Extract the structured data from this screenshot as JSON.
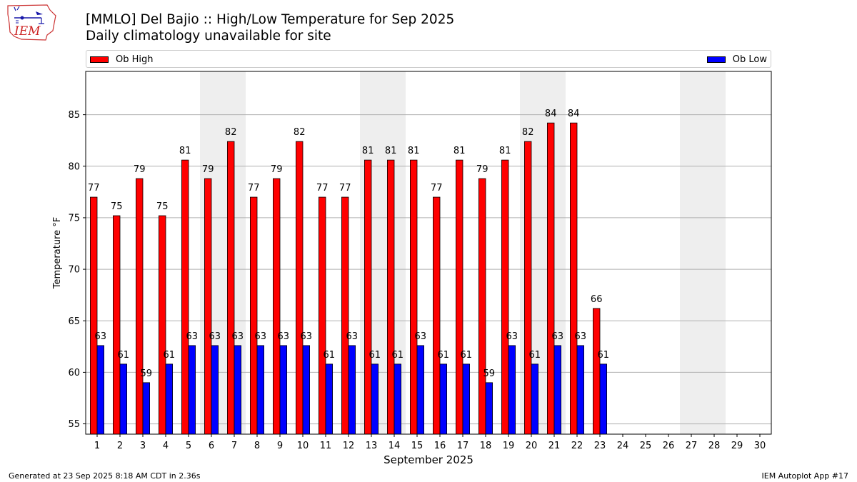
{
  "header": {
    "title": "[MMLO] Del Bajio :: High/Low Temperature for Sep 2025",
    "subtitle": "Daily climatology unavailable for site"
  },
  "logo": {
    "text": "IEM"
  },
  "footer": {
    "left": "Generated at 23 Sep 2025 8:18 AM CDT in 2.36s",
    "right": "IEM Autoplot App #17"
  },
  "colors": {
    "high": "#ff0000",
    "low": "#0000ff",
    "weekend_band": "#eeeeee",
    "grid": "#b0b0b0"
  },
  "chart_data": {
    "type": "bar",
    "title": "[MMLO] Del Bajio :: High/Low Temperature for Sep 2025",
    "subtitle": "Daily climatology unavailable for site",
    "xlabel": "September 2025",
    "ylabel": "Temperature °F",
    "categories": [
      "1",
      "2",
      "3",
      "4",
      "5",
      "6",
      "7",
      "8",
      "9",
      "10",
      "11",
      "12",
      "13",
      "14",
      "15",
      "16",
      "17",
      "18",
      "19",
      "20",
      "21",
      "22",
      "23",
      "24",
      "25",
      "26",
      "27",
      "28",
      "29",
      "30"
    ],
    "series": [
      {
        "name": "Ob High",
        "color": "#ff0000",
        "values": [
          77,
          75.2,
          78.8,
          75.2,
          80.6,
          78.8,
          82.4,
          77,
          78.8,
          82.4,
          77,
          77,
          80.6,
          80.6,
          80.6,
          77,
          80.6,
          78.8,
          80.6,
          82.4,
          84.2,
          84.2,
          66.2,
          null,
          null,
          null,
          null,
          null,
          null,
          null
        ],
        "labels": [
          "77",
          "75",
          "79",
          "75",
          "81",
          "79",
          "82",
          "77",
          "79",
          "82",
          "77",
          "77",
          "81",
          "81",
          "81",
          "77",
          "81",
          "79",
          "81",
          "82",
          "84",
          "84",
          "66",
          "",
          "",
          "",
          "",
          "",
          "",
          ""
        ]
      },
      {
        "name": "Ob Low",
        "color": "#0000ff",
        "values": [
          62.6,
          60.8,
          59,
          60.8,
          62.6,
          62.6,
          62.6,
          62.6,
          62.6,
          62.6,
          60.8,
          62.6,
          60.8,
          60.8,
          62.6,
          60.8,
          60.8,
          59,
          62.6,
          60.8,
          62.6,
          62.6,
          60.8,
          null,
          null,
          null,
          null,
          null,
          null,
          null
        ],
        "labels": [
          "63",
          "61",
          "59",
          "61",
          "63",
          "63",
          "63",
          "63",
          "63",
          "63",
          "61",
          "63",
          "61",
          "61",
          "63",
          "61",
          "61",
          "59",
          "63",
          "61",
          "63",
          "63",
          "61",
          "",
          "",
          "",
          "",
          "",
          "",
          ""
        ]
      }
    ],
    "weekend_days": [
      6,
      7,
      13,
      14,
      20,
      21,
      27,
      28
    ],
    "ylim": [
      54,
      89.2
    ],
    "yticks": [
      55,
      60,
      65,
      70,
      75,
      80,
      85
    ],
    "grid": true,
    "legend_placement": "top"
  }
}
